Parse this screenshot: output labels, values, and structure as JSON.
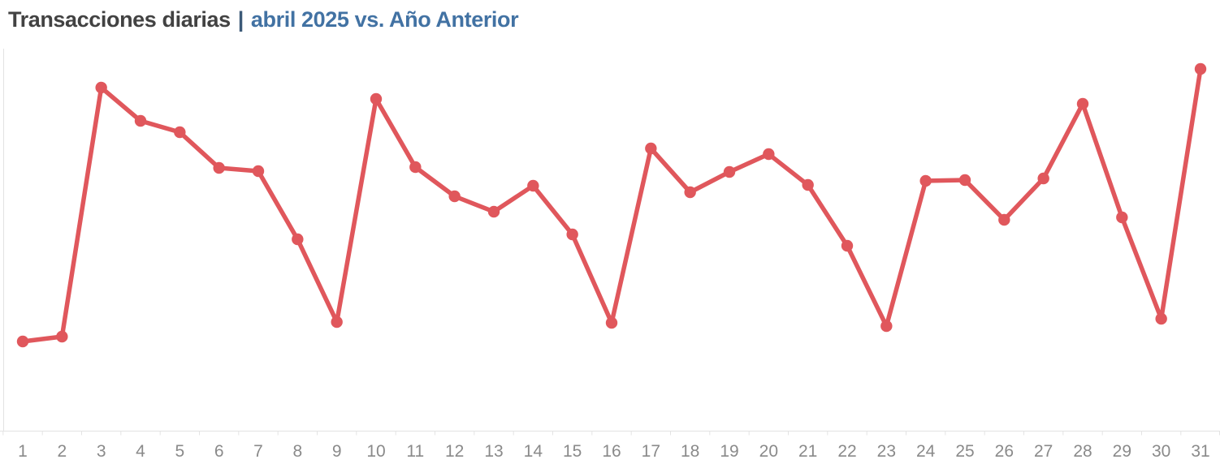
{
  "header": {
    "title_main": "Transacciones diarias",
    "separator": "|",
    "title_sub": "abril 2025 vs. Año Anterior",
    "title_main_color": "#424242",
    "separator_color": "#3c5a78",
    "title_sub_color": "#4272a3"
  },
  "chart_data": {
    "type": "line",
    "title": "Transacciones diarias | abril 2025 vs. Año Anterior",
    "xlabel": "",
    "ylabel": "",
    "x": [
      1,
      2,
      3,
      4,
      5,
      6,
      7,
      8,
      9,
      10,
      11,
      12,
      13,
      14,
      15,
      16,
      17,
      18,
      19,
      20,
      21,
      22,
      23,
      24,
      25,
      26,
      27,
      28,
      29,
      30,
      31
    ],
    "x_tick_labels": [
      "1",
      "2",
      "3",
      "4",
      "5",
      "6",
      "7",
      "8",
      "9",
      "10",
      "11",
      "12",
      "13",
      "14",
      "15",
      "16",
      "17",
      "18",
      "19",
      "20",
      "21",
      "22",
      "23",
      "24",
      "25",
      "26",
      "27",
      "28",
      "29",
      "30",
      "31"
    ],
    "series": [
      {
        "name": "abril 2025",
        "color": "#e0575c",
        "values": [
          220,
          232,
          846,
          764,
          736,
          648,
          640,
          472,
          268,
          818,
          650,
          578,
          540,
          604,
          484,
          266,
          696,
          588,
          638,
          682,
          606,
          456,
          258,
          616,
          618,
          520,
          622,
          806,
          526,
          276,
          892
        ]
      }
    ],
    "ylim": [
      0,
      950
    ],
    "grid": false,
    "legend_position": "none",
    "axis_color": "#e3e3e3",
    "tick_label_color": "#8a8a8a",
    "marker": "circle"
  }
}
